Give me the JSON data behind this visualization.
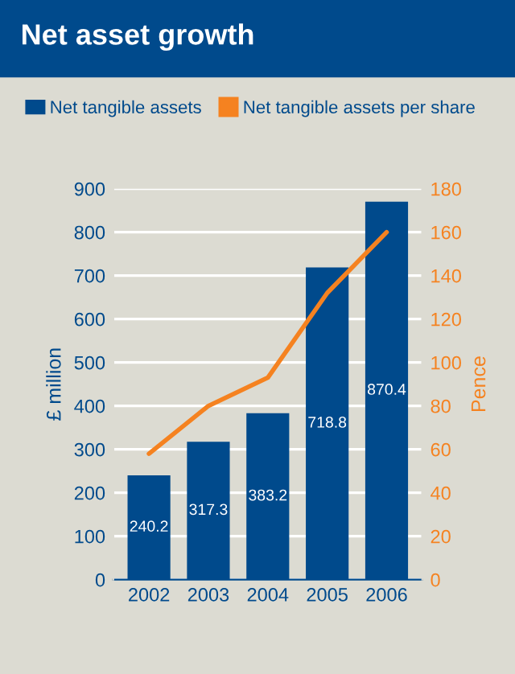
{
  "chart_data": {
    "type": "bar",
    "title": "Net asset growth",
    "ylabel": "£ million",
    "y2label": "Pence",
    "categories": [
      "2002",
      "2003",
      "2004",
      "2005",
      "2006"
    ],
    "series": [
      {
        "name": "Net tangible assets",
        "color": "#004a8c",
        "values": [
          240.2,
          317.3,
          383.2,
          718.8,
          870.4
        ],
        "data_labels": true
      },
      {
        "name": "Net tangible assets per share",
        "type": "line",
        "axis": "y2",
        "color": "#f58220",
        "values": [
          58,
          80,
          93,
          132,
          160
        ]
      }
    ],
    "ylim": [
      0,
      900
    ],
    "yticks": [
      0,
      100,
      200,
      300,
      400,
      500,
      600,
      700,
      800,
      900
    ],
    "y2lim": [
      0,
      180
    ],
    "y2ticks": [
      0,
      20,
      40,
      60,
      80,
      100,
      120,
      140,
      160,
      180
    ],
    "grid": "y",
    "legend": "top",
    "marker": "none",
    "line_style": "solid"
  }
}
